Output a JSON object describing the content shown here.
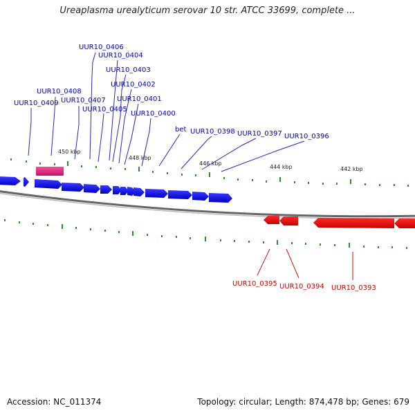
{
  "title": "Ureaplasma urealyticum serovar 10 str. ATCC 33699, complete ...",
  "footer": {
    "accession": "Accession: NC_011374",
    "summary": "Topology: circular; Length: 874,478 bp; Genes: 679"
  },
  "ticks": {
    "upper": [
      "450 kbp",
      "448 kbp",
      "446 kbp",
      "444 kbp",
      "442 kbp"
    ]
  },
  "genes": {
    "forward": [
      "UUR10_0406",
      "UUR10_0404",
      "UUR10_0403",
      "UUR10_0402",
      "UUR10_0408",
      "UUR10_0407",
      "UUR10_0401",
      "UUR10_0409",
      "UUR10_0405",
      "UUR10_0400",
      "bet",
      "UUR10_0398",
      "UUR10_0397",
      "UUR10_0396"
    ],
    "reverse": [
      "UUR10_0395",
      "UUR10_0394",
      "UUR10_0393"
    ]
  },
  "colors": {
    "forward_gene": "#0000ee",
    "reverse_gene": "#ee0000",
    "highlight_gene": "#e8207a",
    "forward_label": "#0000bb",
    "reverse_label": "#cc0000",
    "tick": "#2e8b2e",
    "backbone": "#888888"
  }
}
